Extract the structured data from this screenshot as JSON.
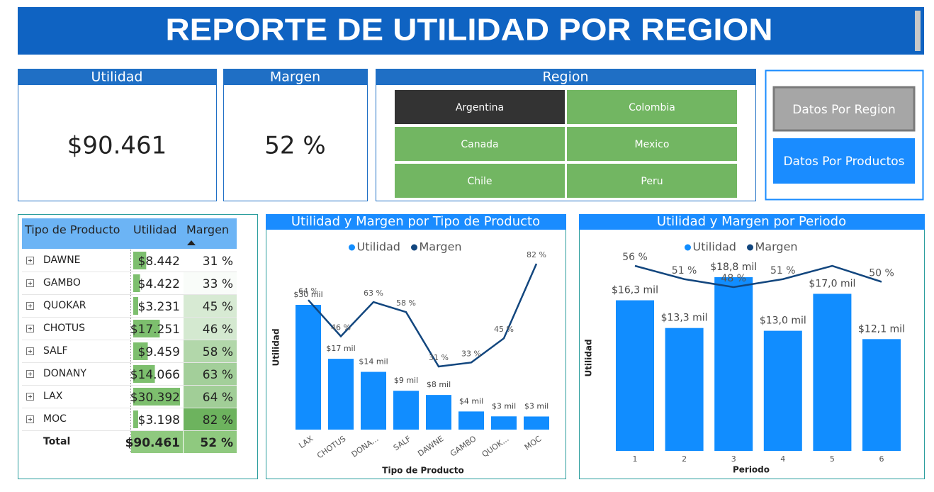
{
  "header": {
    "title": "REPORTE DE UTILIDAD POR REGION"
  },
  "kpis": [
    {
      "title": "Utilidad",
      "value": "$90.461"
    },
    {
      "title": "Margen",
      "value": "52 %"
    }
  ],
  "region_slicer": {
    "title": "Region",
    "options": [
      "Argentina",
      "Colombia",
      "Canada",
      "Mexico",
      "Chile",
      "Peru"
    ],
    "selected": "Argentina"
  },
  "buttons": [
    "Datos Por Region",
    "Datos Por Productos"
  ],
  "table": {
    "columns": [
      "Tipo de Producto",
      "Utilidad",
      "Margen"
    ],
    "rows": [
      {
        "name": "DAWNE",
        "utilidad": 8442,
        "utilidad_label": "$8.442",
        "margen": 31,
        "margen_label": "31 %"
      },
      {
        "name": "GAMBO",
        "utilidad": 4422,
        "utilidad_label": "$4.422",
        "margen": 33,
        "margen_label": "33 %"
      },
      {
        "name": "QUOKAR",
        "utilidad": 3231,
        "utilidad_label": "$3.231",
        "margen": 45,
        "margen_label": "45 %"
      },
      {
        "name": "CHOTUS",
        "utilidad": 17251,
        "utilidad_label": "$17.251",
        "margen": 46,
        "margen_label": "46 %"
      },
      {
        "name": "SALF",
        "utilidad": 9459,
        "utilidad_label": "$9.459",
        "margen": 58,
        "margen_label": "58 %"
      },
      {
        "name": "DONANY",
        "utilidad": 14066,
        "utilidad_label": "$14.066",
        "margen": 63,
        "margen_label": "63 %"
      },
      {
        "name": "LAX",
        "utilidad": 30392,
        "utilidad_label": "$30.392",
        "margen": 64,
        "margen_label": "64 %"
      },
      {
        "name": "MOC",
        "utilidad": 3198,
        "utilidad_label": "$3.198",
        "margen": 82,
        "margen_label": "82 %"
      }
    ],
    "total": {
      "name": "Total",
      "utilidad": 90461,
      "utilidad_label": "$90.461",
      "margen": 52,
      "margen_label": "52 %"
    }
  },
  "chart_data": [
    {
      "type": "bar_line",
      "title": "Utilidad y Margen por Tipo de Producto",
      "x_label": "Tipo de Producto",
      "y_label": "Utilidad",
      "categories": [
        "LAX",
        "CHOTUS",
        "DONA...",
        "SALF",
        "DAWNE",
        "GAMBO",
        "QUOK...",
        "MOC"
      ],
      "series": [
        {
          "name": "Utilidad",
          "color": "#118dff",
          "values": [
            30.392,
            17.251,
            14.066,
            9.459,
            8.442,
            4.422,
            3.231,
            3.198
          ],
          "value_labels": [
            "$30 mil",
            "$17 mil",
            "$14 mil",
            "$9 mil",
            "$8 mil",
            "$4 mil",
            "$3 mil",
            "$3 mil"
          ]
        },
        {
          "name": "Margen",
          "color": "#12467e",
          "values": [
            64,
            46,
            63,
            58,
            31,
            33,
            45,
            82
          ],
          "value_labels": [
            "64 %",
            "46 %",
            "63 %",
            "58 %",
            "31 %",
            "33 %",
            "45 %",
            "82 %"
          ]
        }
      ],
      "legend": "top"
    },
    {
      "type": "bar_line",
      "title": "Utilidad y Margen por Periodo",
      "x_label": "Periodo",
      "y_label": "Utilidad",
      "categories": [
        "1",
        "2",
        "3",
        "4",
        "5",
        "6"
      ],
      "series": [
        {
          "name": "Utilidad",
          "color": "#118dff",
          "values": [
            16.3,
            13.3,
            18.8,
            13.0,
            17.0,
            12.1
          ],
          "value_labels": [
            "$16,3 mil",
            "$13,3 mil",
            "$18,8 mil",
            "$13,0 mil",
            "$17,0 mil",
            "$12,1 mil"
          ]
        },
        {
          "name": "Margen",
          "color": "#12467e",
          "values": [
            56,
            51,
            48,
            51,
            56,
            50
          ],
          "value_labels": [
            "56 %",
            "51 %",
            "48 %",
            "51 %",
            null,
            "50 %"
          ]
        }
      ],
      "legend": "top"
    }
  ]
}
